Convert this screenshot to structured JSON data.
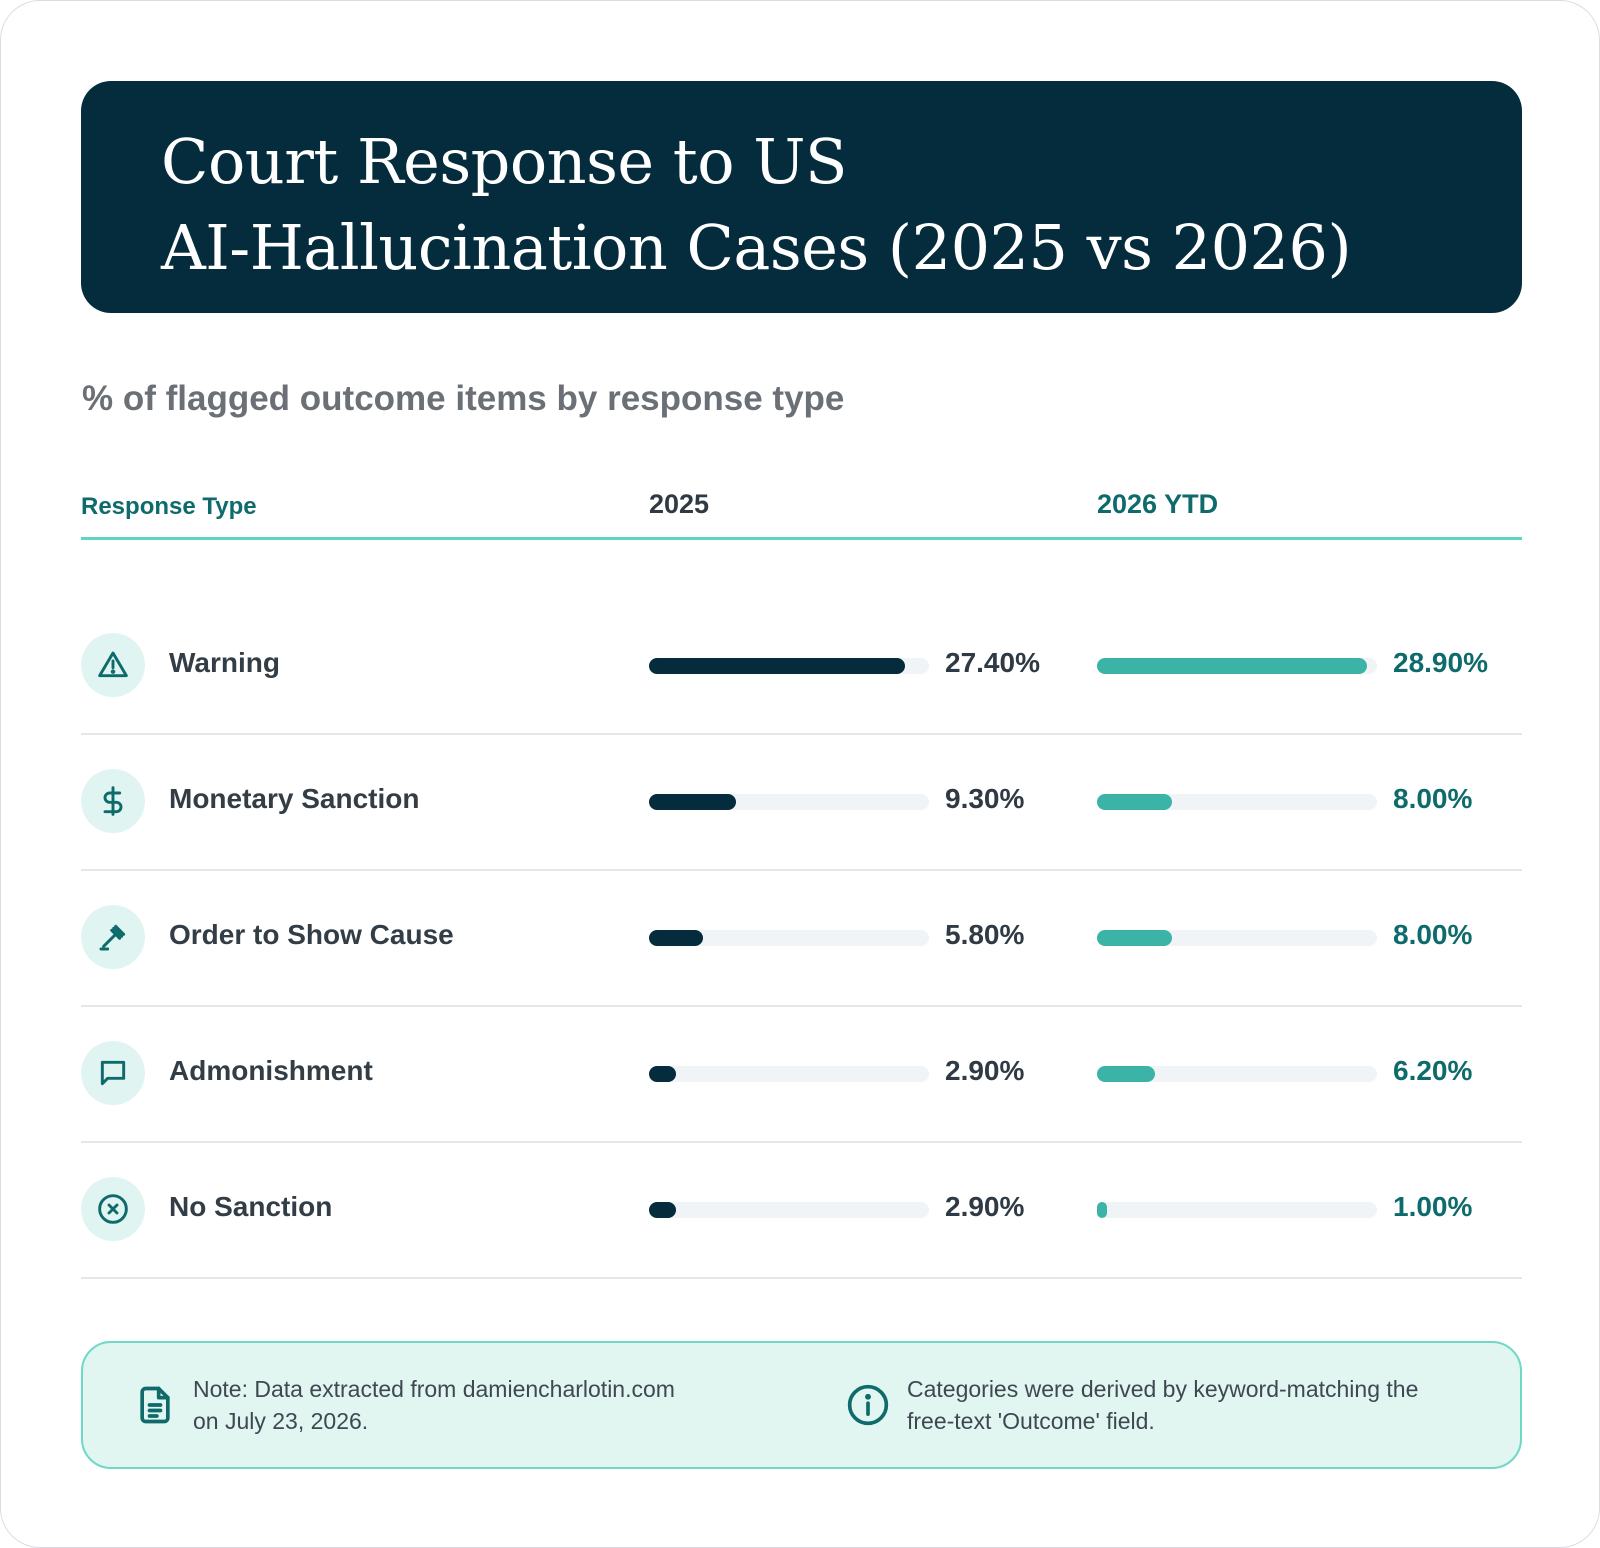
{
  "title": "Court Response to US\nAI-Hallucination Cases (2025 vs 2026)",
  "subtitle": "% of flagged outcome items by response type",
  "columns": {
    "type": "Response Type",
    "y2025": "2025",
    "y2026": "2026 YTD"
  },
  "rows": [
    {
      "label": "Warning",
      "icon": "warning-icon",
      "v2025_text": "27.40%",
      "v2026_text": "28.90%"
    },
    {
      "label": "Monetary Sanction",
      "icon": "dollar-icon",
      "v2025_text": "9.30%",
      "v2026_text": "8.00%"
    },
    {
      "label": "Order to Show Cause",
      "icon": "gavel-icon",
      "v2025_text": "5.80%",
      "v2026_text": "8.00%"
    },
    {
      "label": "Admonishment",
      "icon": "speech-bubble-icon",
      "v2025_text": "2.90%",
      "v2026_text": "6.20%"
    },
    {
      "label": "No Sanction",
      "icon": "x-circle-icon",
      "v2025_text": "2.90%",
      "v2026_text": "1.00%"
    }
  ],
  "notes": {
    "source": "Note: Data extracted from damiencharlotin.com\non July 23, 2026.",
    "method": "Categories were derived by keyword-matching the\nfree-text 'Outcome' field."
  },
  "colors": {
    "header_bg": "#042c3c",
    "bar_2025": "#042c3c",
    "bar_2026": "#3bb3a7",
    "accent": "#0f6b6b",
    "track": "#f1f4f6"
  },
  "chart_data": {
    "type": "bar",
    "orientation": "horizontal",
    "title": "Court Response to US AI-Hallucination Cases (2025 vs 2026)",
    "subtitle": "% of flagged outcome items by response type",
    "categories": [
      "Warning",
      "Monetary Sanction",
      "Order to Show Cause",
      "Admonishment",
      "No Sanction"
    ],
    "series": [
      {
        "name": "2025",
        "values": [
          27.4,
          9.3,
          5.8,
          2.9,
          2.9
        ]
      },
      {
        "name": "2026 YTD",
        "values": [
          28.9,
          8.0,
          8.0,
          6.2,
          1.0
        ]
      }
    ],
    "xlim": [
      0,
      30
    ],
    "grid": false
  }
}
